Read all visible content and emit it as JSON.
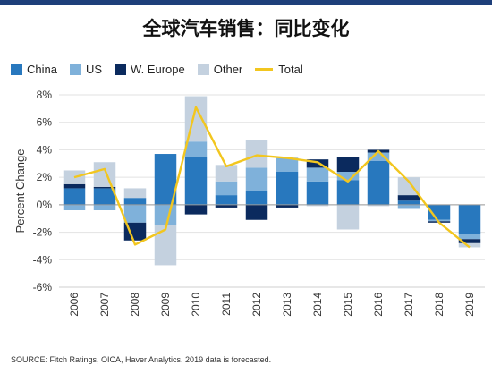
{
  "title": "全球汽车销售：同比变化",
  "source": "SOURCE: Fitch Ratings, OICA, Haver Analytics. 2019 data is forecasted.",
  "colors": {
    "China": "#2878be",
    "US": "#7fb1da",
    "W. Europe": "#0b2a5e",
    "Other": "#c4d1df",
    "Total": "#f2c61f",
    "header_bar": "#1e3f7a"
  },
  "legend": [
    {
      "name": "China",
      "kind": "box"
    },
    {
      "name": "US",
      "kind": "box"
    },
    {
      "name": "W. Europe",
      "kind": "box"
    },
    {
      "name": "Other",
      "kind": "box"
    },
    {
      "name": "Total",
      "kind": "line"
    }
  ],
  "chart_data": {
    "type": "bar",
    "stacked": true,
    "categories": [
      "2006",
      "2007",
      "2008",
      "2009",
      "2010",
      "2011",
      "2012",
      "2013",
      "2014",
      "2015",
      "2016",
      "2017",
      "2018",
      "2019"
    ],
    "series": [
      {
        "name": "China",
        "values": [
          1.2,
          1.2,
          0.5,
          3.7,
          3.5,
          0.7,
          1.0,
          2.4,
          1.7,
          1.8,
          3.2,
          0.3,
          -1.1,
          -2.1
        ]
      },
      {
        "name": "US",
        "values": [
          -0.4,
          -0.4,
          -1.3,
          -1.5,
          1.1,
          1.0,
          1.7,
          1.0,
          1.0,
          0.6,
          0.6,
          -0.3,
          -0.1,
          -0.4
        ]
      },
      {
        "name": "W. Europe",
        "values": [
          0.3,
          0.1,
          -1.3,
          0.0,
          -0.7,
          -0.2,
          -1.1,
          -0.2,
          0.6,
          1.1,
          0.2,
          0.4,
          -0.1,
          -0.3
        ]
      },
      {
        "name": "Other",
        "values": [
          1.0,
          1.8,
          0.7,
          -2.9,
          3.3,
          1.2,
          2.0,
          0.1,
          -0.1,
          -1.8,
          -0.1,
          1.3,
          0.0,
          -0.3
        ]
      },
      {
        "name": "Total",
        "type": "line",
        "values": [
          2.0,
          2.6,
          -2.9,
          -1.8,
          7.1,
          2.8,
          3.6,
          3.4,
          3.1,
          1.7,
          3.9,
          1.7,
          -1.3,
          -3.1
        ]
      }
    ],
    "title": "全球汽车销售：同比变化",
    "xlabel": "",
    "ylabel": "Percent Change",
    "ylim": [
      -6,
      8
    ],
    "yticks": [
      -6,
      -4,
      -2,
      0,
      2,
      4,
      6,
      8
    ],
    "ytick_labels": [
      "-6%",
      "-4%",
      "-2%",
      "0%",
      "2%",
      "4%",
      "6%",
      "8%"
    ],
    "grid": true,
    "legend_position": "top-left"
  }
}
